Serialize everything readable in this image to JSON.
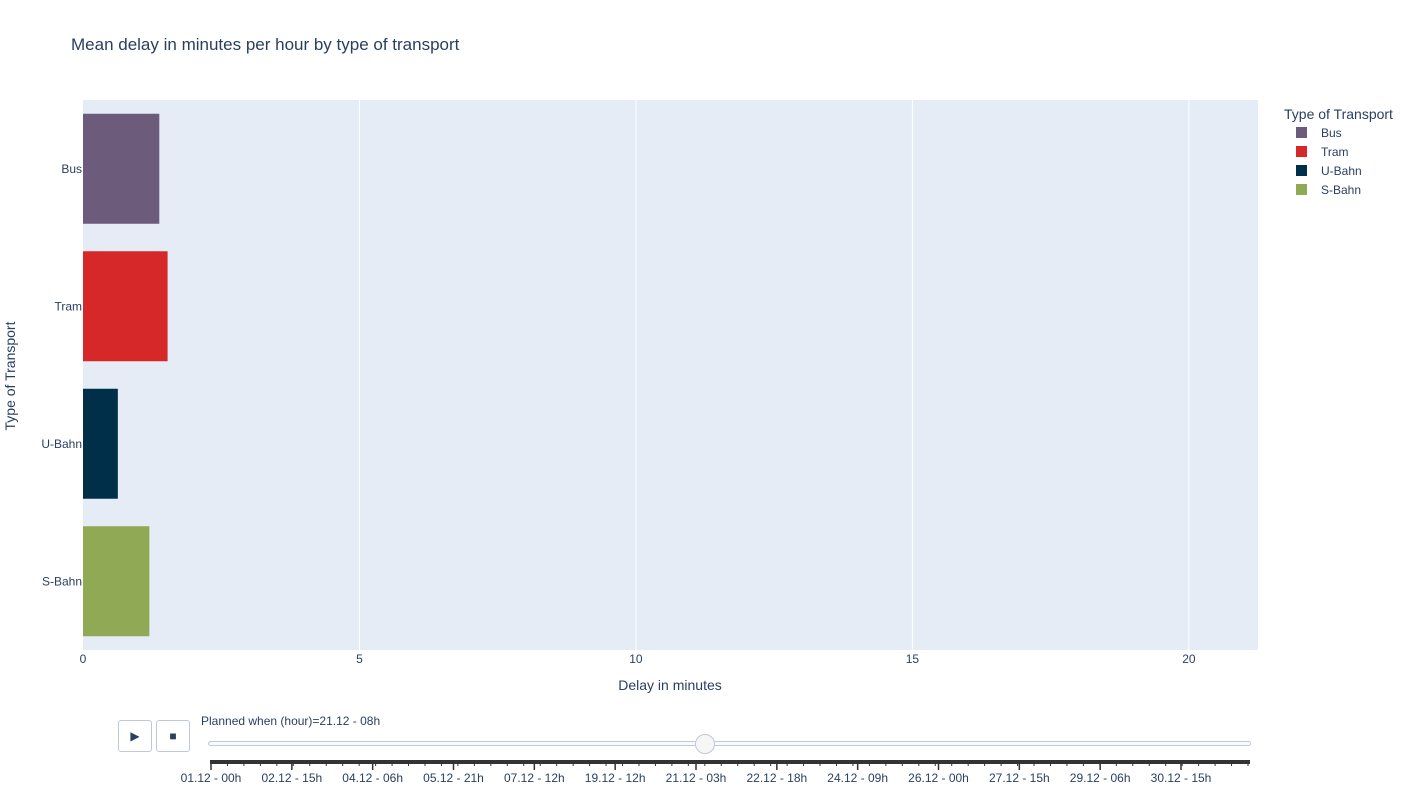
{
  "chart_data": {
    "type": "bar",
    "orientation": "horizontal",
    "title": "Mean delay in minutes per hour by type of transport",
    "xlabel": "Delay in minutes",
    "ylabel": "Type of Transport",
    "xlim": [
      0,
      21.25
    ],
    "xticks": [
      0,
      5,
      10,
      15,
      20
    ],
    "grid": true,
    "categories": [
      "Bus",
      "Tram",
      "U-Bahn",
      "S-Bahn"
    ],
    "series": [
      {
        "name": "Bus",
        "category": "Bus",
        "value": 1.38,
        "color": "#6c5b7b"
      },
      {
        "name": "Tram",
        "category": "Tram",
        "value": 1.53,
        "color": "#d62828"
      },
      {
        "name": "U-Bahn",
        "category": "U-Bahn",
        "value": 0.63,
        "color": "#003049"
      },
      {
        "name": "S-Bahn",
        "category": "S-Bahn",
        "value": 1.2,
        "color": "#90a955"
      }
    ],
    "legend": {
      "title": "Type of Transport",
      "position": "right"
    },
    "plot_background": "#e5ecf6"
  },
  "slider": {
    "current_label": "Planned when (hour)=21.12 - 08h",
    "position": 0.476,
    "tick_labels": [
      "01.12 - 00h",
      "02.12 - 15h",
      "04.12 - 06h",
      "05.12 - 21h",
      "07.12 - 12h",
      "19.12 - 12h",
      "21.12 - 03h",
      "22.12 - 18h",
      "24.12 - 09h",
      "26.12 - 00h",
      "27.12 - 15h",
      "29.12 - 06h",
      "30.12 - 15h"
    ]
  },
  "controls": {
    "play_icon": "play-icon",
    "stop_icon": "stop-icon",
    "play_label": "▶",
    "stop_label": "■"
  }
}
